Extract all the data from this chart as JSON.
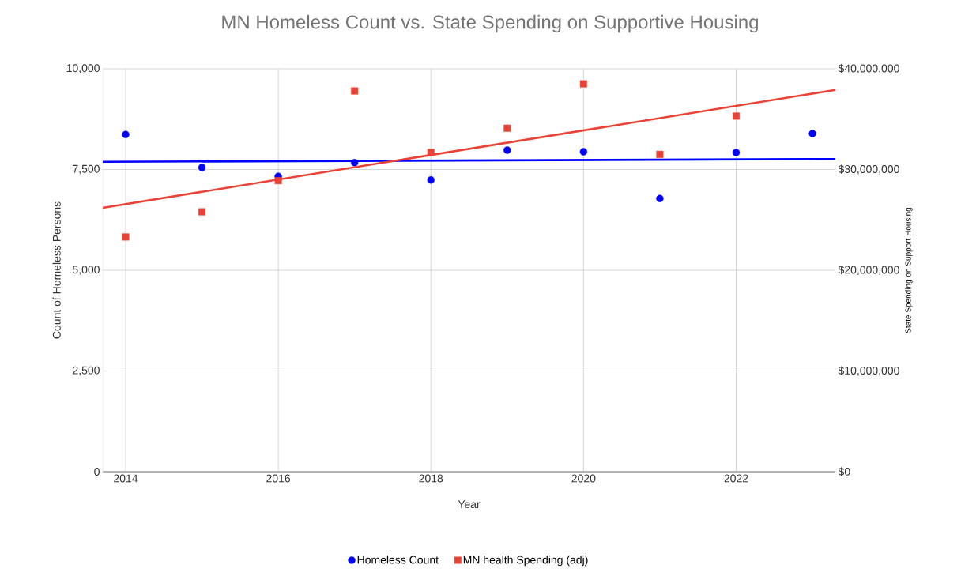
{
  "chart_data": {
    "type": "scatter",
    "title": "MN Homeless Count vs. State Spending on Supportive Housing",
    "xlabel": "Year",
    "ylabel": "Count of Homeless Persons",
    "y2label": "State Spending on Support Housing",
    "x": [
      2014,
      2015,
      2016,
      2017,
      2018,
      2019,
      2020,
      2021,
      2022,
      2023
    ],
    "series": [
      {
        "name": "Homeless Count",
        "color": "#0000ff",
        "marker": "circle",
        "values": [
          8370,
          7550,
          7330,
          7670,
          7240,
          7980,
          7940,
          6780,
          7920,
          8390
        ]
      },
      {
        "name": "MN health Spending (adj)",
        "color": "#ea4335",
        "marker": "square",
        "axis": "y2",
        "x": [
          2014,
          2015,
          2016,
          2017,
          2018,
          2019,
          2020,
          2021,
          2022
        ],
        "values": [
          23300000,
          25800000,
          28900000,
          37800000,
          31700000,
          34100000,
          38500000,
          31500000,
          35300000
        ]
      },
      {
        "type": "line",
        "color": "#0000ff",
        "x": [
          2013.7,
          2023.3
        ],
        "values": [
          7690,
          7760
        ]
      },
      {
        "type": "line",
        "color": "#ea4335",
        "axis": "y2",
        "x": [
          2013.7,
          2023.3
        ],
        "values": [
          26200000,
          37900000
        ]
      }
    ],
    "xlim": [
      2013.7,
      2023.3
    ],
    "xticks": [
      2014,
      2016,
      2018,
      2020,
      2022
    ],
    "ylim": [
      0,
      10000
    ],
    "yticks": [
      0,
      {
        "value": 2500,
        "label": "2,500"
      },
      {
        "value": 5000,
        "label": "5,000"
      },
      {
        "value": 7500,
        "label": "7,500"
      },
      {
        "value": 10000,
        "label": "10,000"
      }
    ],
    "y2lim": [
      0,
      40000000
    ],
    "y2ticks": [
      {
        "value": 0,
        "label": "$0"
      },
      {
        "value": 10000000,
        "label": "$10,000,000"
      },
      {
        "value": 20000000,
        "label": "$20,000,000"
      },
      {
        "value": 30000000,
        "label": "$30,000,000"
      },
      {
        "value": 40000000,
        "label": "$40,000,000"
      }
    ],
    "grid": true,
    "legend": "bottom"
  }
}
